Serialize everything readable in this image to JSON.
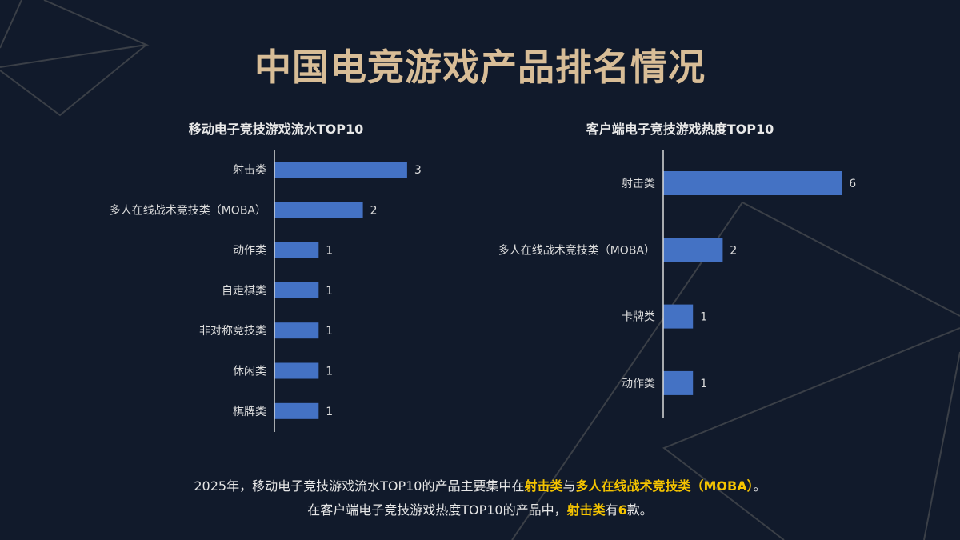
{
  "title": "中国电竞游戏产品排名情况",
  "colors": {
    "bar": "#4472c4",
    "title": "#d8bd97",
    "highlight": "#f5c400",
    "background": "#111a2b"
  },
  "chart_data": [
    {
      "type": "bar",
      "orientation": "horizontal",
      "title": "移动电子竞技游戏流水TOP10",
      "categories": [
        "射击类",
        "多人在线战术竞技类（MOBA）",
        "动作类",
        "自走棋类",
        "非对称竞技类",
        "休闲类",
        "棋牌类"
      ],
      "values": [
        3,
        2,
        1,
        1,
        1,
        1,
        1
      ],
      "data_labels": true,
      "grid": false
    },
    {
      "type": "bar",
      "orientation": "horizontal",
      "title": "客户端电子竞技游戏热度TOP10",
      "categories": [
        "射击类",
        "多人在线战术竞技类（MOBA）",
        "卡牌类",
        "动作类"
      ],
      "values": [
        6,
        2,
        1,
        1
      ],
      "data_labels": true,
      "grid": false
    }
  ],
  "notes": {
    "line1": {
      "a": "2025年，移动电子竞技游戏流水TOP10的产品主要集中在",
      "b": "射击类",
      "c": "与",
      "d": "多人在线战术竞技类（MOBA）",
      "e": "。"
    },
    "line2": {
      "a": "在客户端电子竞技游戏热度TOP10的产品中，",
      "b": "射击类",
      "c": "有",
      "d": "6",
      "e": "款。"
    }
  }
}
